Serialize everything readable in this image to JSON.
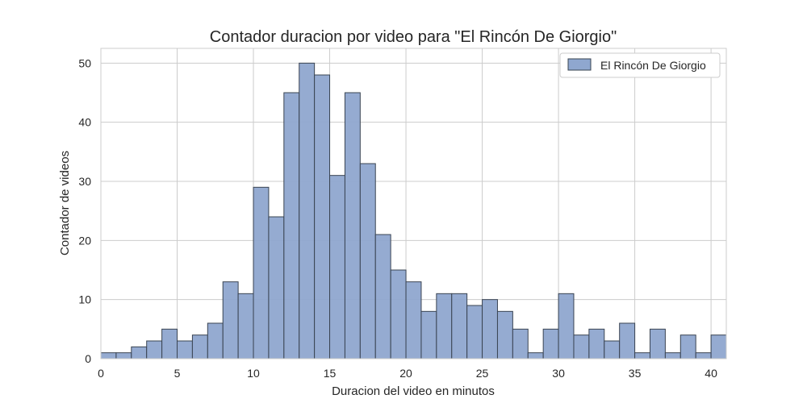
{
  "chart_data": {
    "type": "bar",
    "title": "Contador duracion por video para \"El Rincón De Giorgio\"",
    "xlabel": "Duracion del video en minutos",
    "ylabel": "Contador de videos",
    "xlim": [
      0,
      41
    ],
    "ylim": [
      0,
      52.5
    ],
    "xticks": [
      "0",
      "5",
      "10",
      "15",
      "20",
      "25",
      "30",
      "35",
      "40"
    ],
    "yticks": [
      "0",
      "10",
      "20",
      "30",
      "40",
      "50"
    ],
    "grid": true,
    "legend_position": "top-right",
    "bin_width": 1,
    "series": [
      {
        "name": "El Rincón De Giorgio",
        "color": "#8fa7cf",
        "x": [
          0,
          1,
          2,
          3,
          4,
          5,
          6,
          7,
          8,
          9,
          10,
          11,
          12,
          13,
          14,
          15,
          16,
          17,
          18,
          19,
          20,
          21,
          22,
          23,
          24,
          25,
          26,
          27,
          28,
          29,
          30,
          31,
          32,
          33,
          34,
          35,
          36,
          37,
          38,
          39,
          40
        ],
        "values": [
          1,
          1,
          2,
          3,
          5,
          3,
          4,
          6,
          13,
          11,
          29,
          24,
          45,
          50,
          48,
          31,
          45,
          33,
          21,
          15,
          13,
          8,
          11,
          11,
          9,
          10,
          8,
          5,
          1,
          5,
          11,
          4,
          5,
          3,
          6,
          1,
          5,
          1,
          4,
          1,
          4
        ]
      }
    ]
  }
}
